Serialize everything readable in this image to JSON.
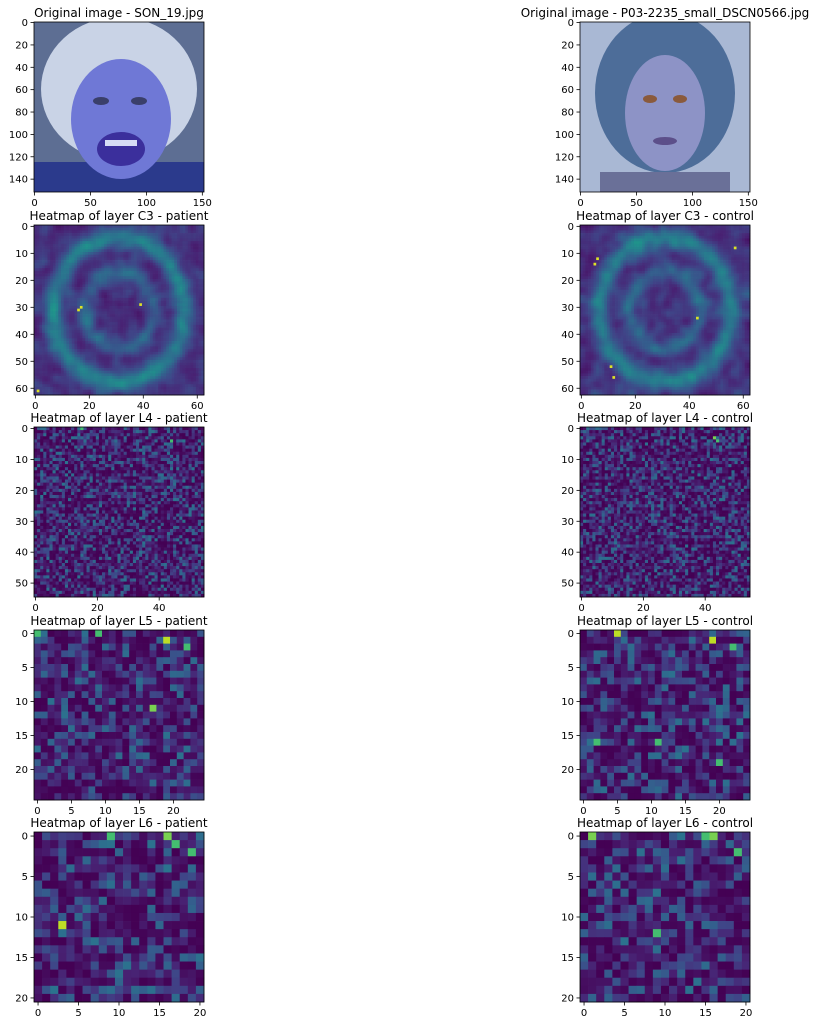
{
  "figure": {
    "panels": [
      {
        "key": "orig_patient",
        "title": "Original image - SON_19.jpg",
        "kind": "image",
        "face": "patient",
        "xticks": [
          0,
          50,
          100,
          150
        ],
        "yticks": [
          0,
          20,
          40,
          60,
          80,
          100,
          120,
          140
        ],
        "extent": 152
      },
      {
        "key": "orig_control",
        "title": "Original image - P03-2235_small_DSCN0566.jpg",
        "kind": "image",
        "face": "control",
        "xticks": [
          0,
          50,
          100,
          150
        ],
        "yticks": [
          0,
          20,
          40,
          60,
          80,
          100,
          120,
          140
        ],
        "extent": 152
      },
      {
        "key": "c3_patient",
        "title": "Heatmap of layer C3 - patient",
        "kind": "heatmap",
        "grid": 63,
        "xticks": [
          0,
          20,
          40,
          60
        ],
        "yticks": [
          0,
          10,
          20,
          30,
          40,
          50,
          60
        ],
        "seed": 11,
        "smooth": true,
        "hot": [
          [
            29,
            39
          ],
          [
            30,
            17
          ],
          [
            31,
            16
          ],
          [
            61,
            1
          ]
        ]
      },
      {
        "key": "c3_control",
        "title": "Heatmap of layer C3 - control",
        "kind": "heatmap",
        "grid": 63,
        "xticks": [
          0,
          20,
          40,
          60
        ],
        "yticks": [
          0,
          10,
          20,
          30,
          40,
          50,
          60
        ],
        "seed": 23,
        "smooth": true,
        "hot": [
          [
            12,
            6
          ],
          [
            14,
            5
          ],
          [
            34,
            43
          ],
          [
            52,
            11
          ],
          [
            56,
            12
          ],
          [
            8,
            57
          ]
        ]
      },
      {
        "key": "l4_patient",
        "title": "Heatmap of layer L4 - patient",
        "kind": "heatmap",
        "grid": 55,
        "xticks": [
          0,
          20,
          40
        ],
        "yticks": [
          0,
          10,
          20,
          30,
          40,
          50
        ],
        "seed": 37,
        "smooth": false,
        "hot": [
          [
            4,
            44
          ],
          [
            0,
            15
          ]
        ]
      },
      {
        "key": "l4_control",
        "title": "Heatmap of layer L4 - control",
        "kind": "heatmap",
        "grid": 55,
        "xticks": [
          0,
          20,
          40
        ],
        "yticks": [
          0,
          10,
          20,
          30,
          40,
          50
        ],
        "seed": 41,
        "smooth": false,
        "hot": [
          [
            4,
            44
          ],
          [
            3,
            43
          ]
        ]
      },
      {
        "key": "l5_patient",
        "title": "Heatmap of layer L5 - patient",
        "kind": "heatmap",
        "grid": 25,
        "xticks": [
          0,
          5,
          10,
          15,
          20
        ],
        "yticks": [
          0,
          5,
          10,
          15,
          20
        ],
        "seed": 53,
        "smooth": false,
        "hot": [
          [
            1,
            19
          ],
          [
            0,
            0
          ],
          [
            0,
            9
          ],
          [
            2,
            22
          ],
          [
            11,
            17
          ]
        ]
      },
      {
        "key": "l5_control",
        "title": "Heatmap of layer L5 - control",
        "kind": "heatmap",
        "grid": 25,
        "xticks": [
          0,
          5,
          10,
          15,
          20
        ],
        "yticks": [
          0,
          5,
          10,
          15,
          20
        ],
        "seed": 59,
        "smooth": false,
        "hot": [
          [
            1,
            19
          ],
          [
            2,
            22
          ],
          [
            16,
            2
          ],
          [
            19,
            20
          ],
          [
            0,
            5
          ],
          [
            16,
            11
          ]
        ]
      },
      {
        "key": "l6_patient",
        "title": "Heatmap of layer L6 - patient",
        "kind": "heatmap",
        "grid": 21,
        "xticks": [
          0,
          5,
          10,
          15,
          20
        ],
        "yticks": [
          0,
          5,
          10,
          15,
          20
        ],
        "seed": 67,
        "smooth": false,
        "hot": [
          [
            0,
            16
          ],
          [
            1,
            17
          ],
          [
            0,
            9
          ],
          [
            2,
            19
          ],
          [
            11,
            3
          ]
        ]
      },
      {
        "key": "l6_control",
        "title": "Heatmap of layer L6 - control",
        "kind": "heatmap",
        "grid": 21,
        "xticks": [
          0,
          5,
          10,
          15,
          20
        ],
        "yticks": [
          0,
          5,
          10,
          15,
          20
        ],
        "seed": 71,
        "smooth": false,
        "hot": [
          [
            0,
            16
          ],
          [
            0,
            1
          ],
          [
            0,
            15
          ],
          [
            2,
            19
          ],
          [
            12,
            9
          ]
        ]
      }
    ]
  },
  "chart_data": [
    {
      "type": "heatmap",
      "title": "Heatmap of layer C3 - patient",
      "size": [
        63,
        63
      ],
      "xlim": [
        0,
        62
      ],
      "ylim": [
        62,
        0
      ]
    },
    {
      "type": "heatmap",
      "title": "Heatmap of layer C3 - control",
      "size": [
        63,
        63
      ],
      "xlim": [
        0,
        62
      ],
      "ylim": [
        62,
        0
      ]
    },
    {
      "type": "heatmap",
      "title": "Heatmap of layer L4 - patient",
      "size": [
        55,
        55
      ],
      "xlim": [
        0,
        54
      ],
      "ylim": [
        54,
        0
      ]
    },
    {
      "type": "heatmap",
      "title": "Heatmap of layer L4 - control",
      "size": [
        55,
        55
      ],
      "xlim": [
        0,
        54
      ],
      "ylim": [
        54,
        0
      ]
    },
    {
      "type": "heatmap",
      "title": "Heatmap of layer L5 - patient",
      "size": [
        25,
        25
      ],
      "xlim": [
        0,
        24
      ],
      "ylim": [
        24,
        0
      ]
    },
    {
      "type": "heatmap",
      "title": "Heatmap of layer L5 - control",
      "size": [
        25,
        25
      ],
      "xlim": [
        0,
        24
      ],
      "ylim": [
        24,
        0
      ]
    },
    {
      "type": "heatmap",
      "title": "Heatmap of layer L6 - patient",
      "size": [
        21,
        21
      ],
      "xlim": [
        0,
        20
      ],
      "ylim": [
        20,
        0
      ]
    },
    {
      "type": "heatmap",
      "title": "Heatmap of layer L6 - control",
      "size": [
        21,
        21
      ],
      "xlim": [
        0,
        20
      ],
      "ylim": [
        20,
        0
      ]
    }
  ]
}
